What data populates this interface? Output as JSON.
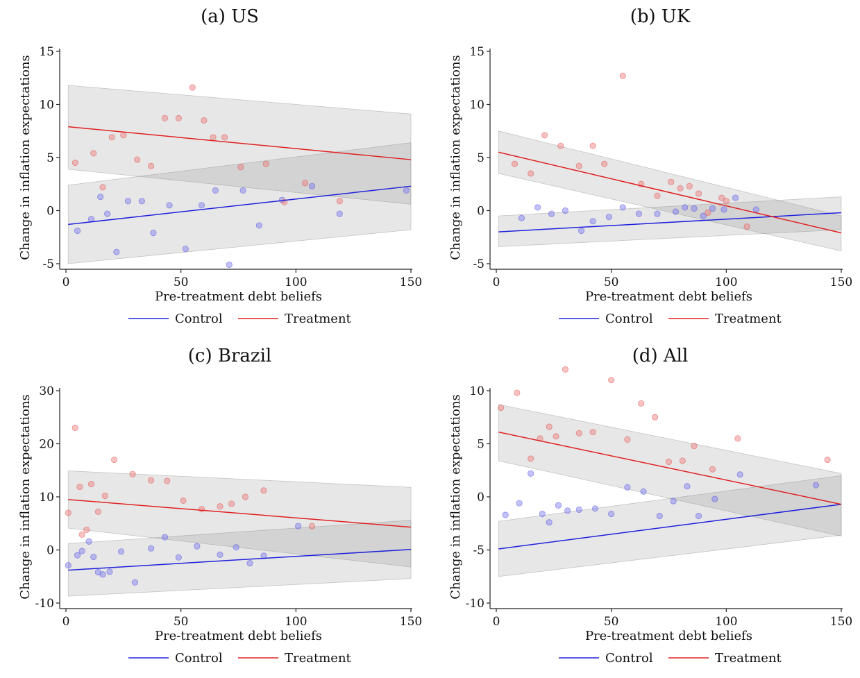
{
  "chart_data": [
    {
      "type": "scatter",
      "title": "(a) US",
      "xlabel": "Pre-treatment debt beliefs",
      "ylabel": "Change in inflation expectations",
      "xlim": [
        0,
        150
      ],
      "ylim": [
        -5,
        15
      ],
      "xticks": [
        "0",
        "50",
        "100",
        "150"
      ],
      "yticks": [
        "-5",
        "0",
        "5",
        "10",
        "15"
      ],
      "legend": [
        "Control",
        "Treatment"
      ],
      "legend_position": "bottom",
      "colors": {
        "control": "#2020dd",
        "treatment": "#e02020"
      },
      "control_points": [
        [
          5,
          -1.9
        ],
        [
          11,
          -0.8
        ],
        [
          15,
          1.3
        ],
        [
          18,
          -0.3
        ],
        [
          22,
          -3.9
        ],
        [
          27,
          0.9
        ],
        [
          33,
          0.9
        ],
        [
          38,
          -2.1
        ],
        [
          45,
          0.5
        ],
        [
          52,
          -3.6
        ],
        [
          59,
          0.5
        ],
        [
          65,
          1.9
        ],
        [
          71,
          -5.1
        ],
        [
          77,
          1.9
        ],
        [
          84,
          -1.4
        ],
        [
          94,
          1.0
        ],
        [
          107,
          2.3
        ],
        [
          119,
          -0.3
        ],
        [
          148,
          1.9
        ]
      ],
      "treatment_points": [
        [
          4,
          4.5
        ],
        [
          12,
          5.4
        ],
        [
          16,
          2.2
        ],
        [
          20,
          6.9
        ],
        [
          25,
          7.1
        ],
        [
          31,
          4.8
        ],
        [
          37,
          4.2
        ],
        [
          43,
          8.7
        ],
        [
          49,
          8.7
        ],
        [
          55,
          11.6
        ],
        [
          60,
          8.5
        ],
        [
          64,
          6.9
        ],
        [
          69,
          6.9
        ],
        [
          76,
          4.1
        ],
        [
          87,
          4.4
        ],
        [
          95,
          0.8
        ],
        [
          104,
          2.6
        ],
        [
          119,
          0.9
        ]
      ],
      "control_fit": [
        [
          1,
          -1.3
        ],
        [
          150,
          2.3
        ]
      ],
      "treatment_fit": [
        [
          1,
          7.9
        ],
        [
          150,
          4.8
        ]
      ],
      "control_band": {
        "x": [
          1,
          150
        ],
        "lower": [
          -5.0,
          -1.8
        ],
        "upper": [
          2.4,
          6.4
        ]
      },
      "treatment_band": {
        "x": [
          1,
          150
        ],
        "lower": [
          3.9,
          0.6
        ],
        "upper": [
          11.8,
          9.1
        ]
      }
    },
    {
      "type": "scatter",
      "title": "(b) UK",
      "xlabel": "Pre-treatment debt beliefs",
      "ylabel": "Change in inflation expectations",
      "xlim": [
        0,
        150
      ],
      "ylim": [
        -5,
        15
      ],
      "xticks": [
        "0",
        "50",
        "100",
        "150"
      ],
      "yticks": [
        "-5",
        "0",
        "5",
        "10",
        "15"
      ],
      "legend": [
        "Control",
        "Treatment"
      ],
      "legend_position": "bottom",
      "colors": {
        "control": "#2020dd",
        "treatment": "#e02020"
      },
      "control_points": [
        [
          11,
          -0.7
        ],
        [
          18,
          0.3
        ],
        [
          24,
          -0.3
        ],
        [
          30,
          0.0
        ],
        [
          37,
          -1.9
        ],
        [
          42,
          -1.0
        ],
        [
          49,
          -0.6
        ],
        [
          55,
          0.3
        ],
        [
          62,
          -0.3
        ],
        [
          70,
          -0.3
        ],
        [
          78,
          -0.1
        ],
        [
          82,
          0.3
        ],
        [
          86,
          0.2
        ],
        [
          90,
          -0.5
        ],
        [
          94,
          0.2
        ],
        [
          99,
          0.1
        ],
        [
          104,
          1.2
        ],
        [
          113,
          0.1
        ]
      ],
      "treatment_points": [
        [
          8,
          4.4
        ],
        [
          15,
          3.5
        ],
        [
          21,
          7.1
        ],
        [
          28,
          6.1
        ],
        [
          36,
          4.2
        ],
        [
          42,
          6.1
        ],
        [
          47,
          4.4
        ],
        [
          55,
          12.7
        ],
        [
          63,
          2.5
        ],
        [
          70,
          1.4
        ],
        [
          76,
          2.7
        ],
        [
          80,
          2.1
        ],
        [
          84,
          2.3
        ],
        [
          88,
          1.6
        ],
        [
          92,
          -0.2
        ],
        [
          98,
          1.2
        ],
        [
          100,
          0.9
        ],
        [
          109,
          -1.5
        ]
      ],
      "control_fit": [
        [
          1,
          -2.0
        ],
        [
          150,
          -0.2
        ]
      ],
      "treatment_fit": [
        [
          1,
          5.5
        ],
        [
          150,
          -2.1
        ]
      ],
      "control_band": {
        "x": [
          1,
          150
        ],
        "lower": [
          -3.4,
          -1.8
        ],
        "upper": [
          -0.5,
          1.3
        ]
      },
      "treatment_band": {
        "x": [
          1,
          150
        ],
        "lower": [
          3.5,
          -3.8
        ],
        "upper": [
          7.5,
          -0.5
        ]
      }
    },
    {
      "type": "scatter",
      "title": "(c) Brazil",
      "xlabel": "Pre-treatment debt beliefs",
      "ylabel": "Change in inflation expectations",
      "xlim": [
        0,
        150
      ],
      "ylim": [
        -10,
        30
      ],
      "xticks": [
        "0",
        "50",
        "100",
        "150"
      ],
      "yticks": [
        "-10",
        "0",
        "10",
        "20",
        "30"
      ],
      "legend": [
        "Control",
        "Treatment"
      ],
      "legend_position": "bottom",
      "colors": {
        "control": "#2020dd",
        "treatment": "#e02020"
      },
      "control_points": [
        [
          1,
          -2.9
        ],
        [
          5,
          -1.0
        ],
        [
          7,
          -0.2
        ],
        [
          10,
          1.6
        ],
        [
          12,
          -1.3
        ],
        [
          14,
          -4.2
        ],
        [
          16,
          -4.6
        ],
        [
          19,
          -4.1
        ],
        [
          24,
          -0.3
        ],
        [
          30,
          -6.1
        ],
        [
          37,
          0.3
        ],
        [
          43,
          2.4
        ],
        [
          49,
          -1.4
        ],
        [
          57,
          0.7
        ],
        [
          67,
          -0.9
        ],
        [
          74,
          0.5
        ],
        [
          80,
          -2.5
        ],
        [
          86,
          -1.1
        ],
        [
          101,
          4.5
        ]
      ],
      "treatment_points": [
        [
          1,
          7.0
        ],
        [
          4,
          23.0
        ],
        [
          6,
          11.9
        ],
        [
          7,
          2.9
        ],
        [
          9,
          3.8
        ],
        [
          11,
          12.4
        ],
        [
          14,
          7.2
        ],
        [
          17,
          10.2
        ],
        [
          21,
          17.0
        ],
        [
          29,
          14.3
        ],
        [
          37,
          13.1
        ],
        [
          44,
          13.0
        ],
        [
          51,
          9.3
        ],
        [
          59,
          7.7
        ],
        [
          67,
          8.2
        ],
        [
          72,
          8.7
        ],
        [
          78,
          10.0
        ],
        [
          86,
          11.2
        ],
        [
          107,
          4.5
        ]
      ],
      "control_fit": [
        [
          1,
          -3.8
        ],
        [
          150,
          0.1
        ]
      ],
      "treatment_fit": [
        [
          1,
          9.5
        ],
        [
          150,
          4.3
        ]
      ],
      "control_band": {
        "x": [
          1,
          150
        ],
        "lower": [
          -8.7,
          -5.4
        ],
        "upper": [
          1.2,
          5.6
        ]
      },
      "treatment_band": {
        "x": [
          1,
          150
        ],
        "lower": [
          4.1,
          -3.2
        ],
        "upper": [
          14.9,
          11.8
        ]
      }
    },
    {
      "type": "scatter",
      "title": "(d) All",
      "xlabel": "Pre-treatment debt beliefs",
      "ylabel": "Change in inflation expectations",
      "xlim": [
        0,
        150
      ],
      "ylim": [
        -10,
        10
      ],
      "xticks": [
        "0",
        "50",
        "100",
        "150"
      ],
      "yticks": [
        "-10",
        "-5",
        "0",
        "5",
        "10"
      ],
      "legend": [
        "Control",
        "Treatment"
      ],
      "legend_position": "bottom",
      "colors": {
        "control": "#2020dd",
        "treatment": "#e02020"
      },
      "control_points": [
        [
          4,
          -1.7
        ],
        [
          10,
          -0.6
        ],
        [
          15,
          2.2
        ],
        [
          20,
          -1.6
        ],
        [
          23,
          -2.4
        ],
        [
          27,
          -0.8
        ],
        [
          31,
          -1.3
        ],
        [
          36,
          -1.2
        ],
        [
          43,
          -1.1
        ],
        [
          50,
          -1.6
        ],
        [
          57,
          0.9
        ],
        [
          64,
          0.5
        ],
        [
          71,
          -1.8
        ],
        [
          77,
          -0.4
        ],
        [
          83,
          1.0
        ],
        [
          88,
          -1.8
        ],
        [
          95,
          -0.2
        ],
        [
          106,
          2.1
        ],
        [
          139,
          1.1
        ]
      ],
      "treatment_points": [
        [
          2,
          8.4
        ],
        [
          9,
          9.8
        ],
        [
          15,
          3.6
        ],
        [
          19,
          5.5
        ],
        [
          23,
          6.6
        ],
        [
          26,
          5.7
        ],
        [
          30,
          12.0
        ],
        [
          36,
          6.0
        ],
        [
          42,
          6.1
        ],
        [
          50,
          11.0
        ],
        [
          57,
          5.4
        ],
        [
          63,
          8.8
        ],
        [
          69,
          7.5
        ],
        [
          75,
          3.3
        ],
        [
          81,
          3.4
        ],
        [
          86,
          4.8
        ],
        [
          94,
          2.6
        ],
        [
          105,
          5.5
        ],
        [
          144,
          3.5
        ]
      ],
      "control_fit": [
        [
          1,
          -4.9
        ],
        [
          150,
          -0.7
        ]
      ],
      "treatment_fit": [
        [
          1,
          6.1
        ],
        [
          150,
          -0.7
        ]
      ],
      "control_band": {
        "x": [
          1,
          150
        ],
        "lower": [
          -7.5,
          -3.6
        ],
        "upper": [
          -2.3,
          2.0
        ]
      },
      "treatment_band": {
        "x": [
          1,
          150
        ],
        "lower": [
          3.4,
          -3.7
        ],
        "upper": [
          8.7,
          2.2
        ]
      }
    }
  ]
}
